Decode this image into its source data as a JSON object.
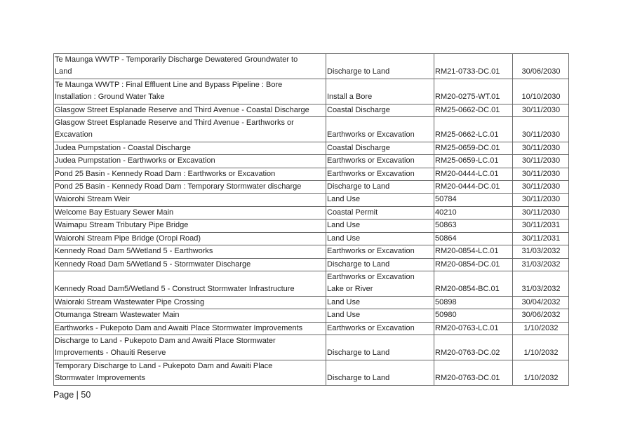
{
  "table": {
    "rows": [
      [
        [
          "Te Maunga WWTP - Temporarily Discharge Dewatered Groundwater to",
          "Land"
        ],
        "Discharge to Land",
        "RM21-0733-DC.01",
        "30/06/2030"
      ],
      [
        [
          "Te Maunga WWTP : Final Effluent Line and Bypass Pipeline : Bore",
          "Installation : Ground Water Take"
        ],
        "Install a Bore",
        "RM20-0275-WT.01",
        "10/10/2030"
      ],
      [
        "Glasgow Street Esplanade Reserve and Third Avenue - Coastal Discharge",
        "Coastal Discharge",
        "RM25-0662-DC.01",
        "30/11/2030"
      ],
      [
        [
          "Glasgow Street Esplanade Reserve and Third Avenue - Earthworks or",
          "Excavation"
        ],
        "Earthworks or Excavation",
        "RM25-0662-LC.01",
        "30/11/2030"
      ],
      [
        "Judea Pumpstation - Coastal Discharge",
        "Coastal Discharge",
        "RM25-0659-DC.01",
        "30/11/2030"
      ],
      [
        "Judea Pumpstation - Earthworks or Excavation",
        "Earthworks or Excavation",
        "RM25-0659-LC.01",
        "30/11/2030"
      ],
      [
        "Pond 25 Basin - Kennedy Road Dam : Earthworks or Excavation",
        "Earthworks or Excavation",
        "RM20-0444-LC.01",
        "30/11/2030"
      ],
      [
        "Pond 25 Basin - Kennedy Road Dam : Temporary Stormwater discharge",
        "Discharge to Land",
        "RM20-0444-DC.01",
        "30/11/2030"
      ],
      [
        "Waiorohi Stream Weir",
        "Land Use",
        "50784",
        "30/11/2030"
      ],
      [
        "Welcome Bay Estuary Sewer Main",
        "Coastal Permit",
        "40210",
        "30/11/2030"
      ],
      [
        "Waimapu Stream Tributary Pipe Bridge",
        "Land Use",
        "50863",
        "30/11/2031"
      ],
      [
        "Waiorohi Stream Pipe Bridge (Oropi Road)",
        "Land Use",
        "50864",
        "30/11/2031"
      ],
      [
        "Kennedy Road Dam 5/Wetland 5 - Earthworks",
        "Earthworks or Excavation",
        "RM20-0854-LC.01",
        "31/03/2032"
      ],
      [
        "Kennedy Road Dam 5/Wetland 5 - Stormwater Discharge",
        "Discharge to Land",
        "RM20-0854-DC.01",
        "31/03/2032"
      ],
      [
        "Kennedy Road Dam5/Wetland 5 - Construct Stormwater Infrastructure",
        [
          "Earthworks or Excavation",
          "Lake or River"
        ],
        "RM20-0854-BC.01",
        "31/03/2032"
      ],
      [
        "Waioraki Stream Wastewater Pipe Crossing",
        "Land Use",
        "50898",
        "30/04/2032"
      ],
      [
        "Otumanga Stream Wastewater Main",
        "Land Use",
        "50980",
        "30/06/2032"
      ],
      [
        " Earthworks - Pukepoto Dam and Awaiti Place Stormwater Improvements",
        "Earthworks or Excavation",
        "RM20-0763-LC.01",
        "1/10/2032"
      ],
      [
        [
          "Discharge to Land - Pukepoto Dam and Awaiti Place Stormwater",
          "Improvements - Ohauiti Reserve"
        ],
        "Discharge to Land",
        "RM20-0763-DC.02",
        "1/10/2032"
      ],
      [
        [
          "Temporary Discharge to Land - Pukepoto Dam and Awaiti Place",
          "Stormwater Improvements"
        ],
        "Discharge to Land",
        "RM20-0763-DC.01",
        "1/10/2032"
      ]
    ]
  },
  "footer": {
    "page": "Page | 50"
  }
}
